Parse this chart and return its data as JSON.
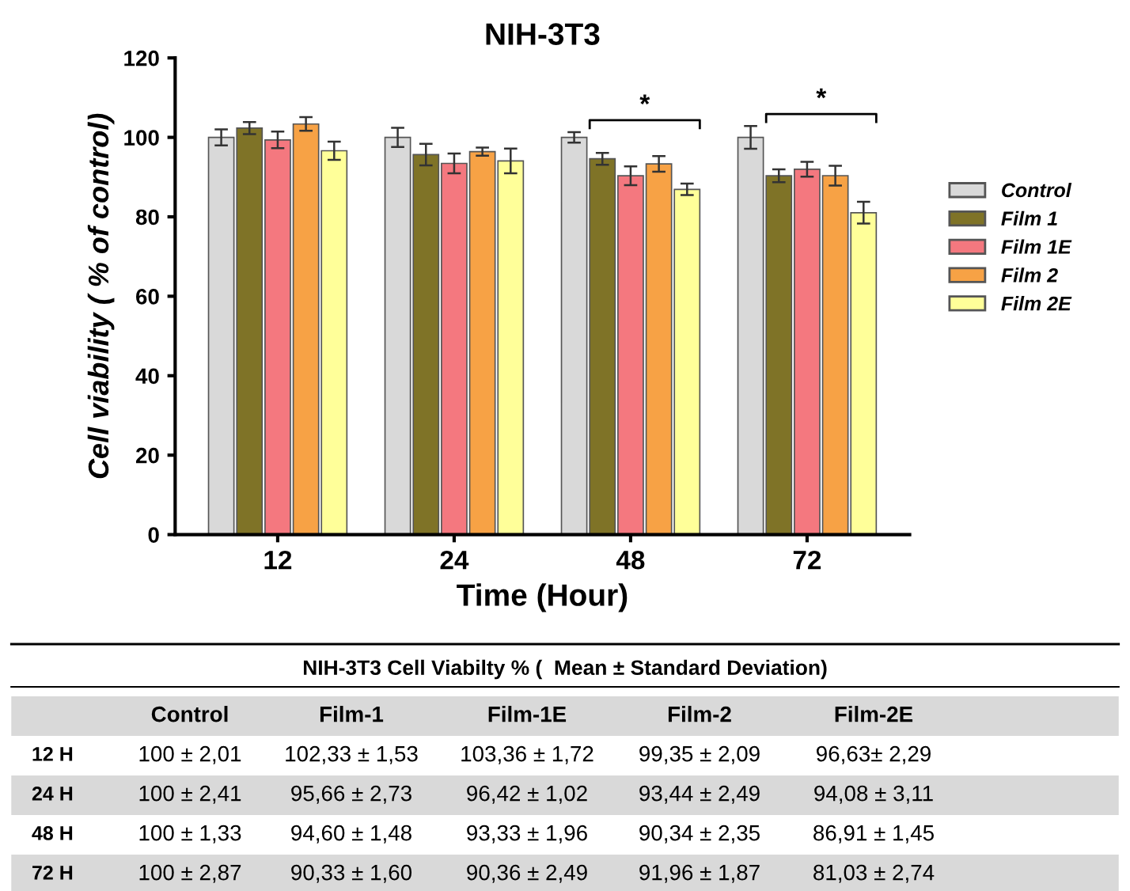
{
  "chart_data": {
    "type": "bar",
    "title": "NIH-3T3",
    "xlabel": "Time (Hour)",
    "ylabel": "Cell viability ( % of control)",
    "categories": [
      "12",
      "24",
      "48",
      "72"
    ],
    "series": [
      {
        "name": "Control",
        "color": "#d9d9d9",
        "values": [
          100,
          100,
          100,
          100
        ],
        "errors": [
          2.01,
          2.41,
          1.33,
          2.87
        ]
      },
      {
        "name": "Film 1",
        "color": "#7f7327",
        "values": [
          102.33,
          95.66,
          94.6,
          90.33
        ],
        "errors": [
          1.53,
          2.73,
          1.48,
          1.6
        ]
      },
      {
        "name": "Film 1E",
        "color": "#f4787f",
        "values": [
          99.35,
          93.44,
          90.34,
          91.96
        ],
        "errors": [
          2.09,
          2.49,
          2.35,
          1.87
        ]
      },
      {
        "name": "Film 2",
        "color": "#f7a245",
        "values": [
          103.36,
          96.42,
          93.33,
          90.36
        ],
        "errors": [
          1.72,
          1.02,
          1.96,
          2.49
        ]
      },
      {
        "name": "Film 2E",
        "color": "#ffff99",
        "values": [
          96.63,
          94.08,
          86.91,
          81.03
        ],
        "errors": [
          2.29,
          3.11,
          1.45,
          2.74
        ]
      }
    ],
    "ylim": [
      0,
      120
    ],
    "yticks": [
      0,
      20,
      40,
      60,
      80,
      100,
      120
    ],
    "grid": false,
    "legend": "right",
    "annotations": [
      "*",
      "*",
      "NIH-3T3 Cell Viabilty % (  Mean ± Standard Deviation)",
      "Control",
      "Film-1",
      "Film-1E",
      "Film-2",
      "Film-2E",
      "12 H",
      "100 ± 2,01",
      "102,33 ± 1,53",
      "103,36 ± 1,72",
      "99,35 ± 2,09",
      "96,63± 2,29",
      "24 H",
      "100 ± 2,41",
      "95,66 ± 2,73",
      "96,42 ± 1,02",
      "93,44 ± 2,49",
      "94,08 ± 3,11",
      "48 H",
      "100 ± 1,33",
      "94,60 ± 1,48",
      "93,33 ± 1,96",
      "90,34 ± 2,35",
      "86,91 ± 1,45",
      "72 H",
      "100 ± 2,87",
      "90,33 ± 1,60",
      "90,36 ± 2,49",
      "91,96 ± 1,87",
      "81,03 ± 2,74"
    ]
  }
}
